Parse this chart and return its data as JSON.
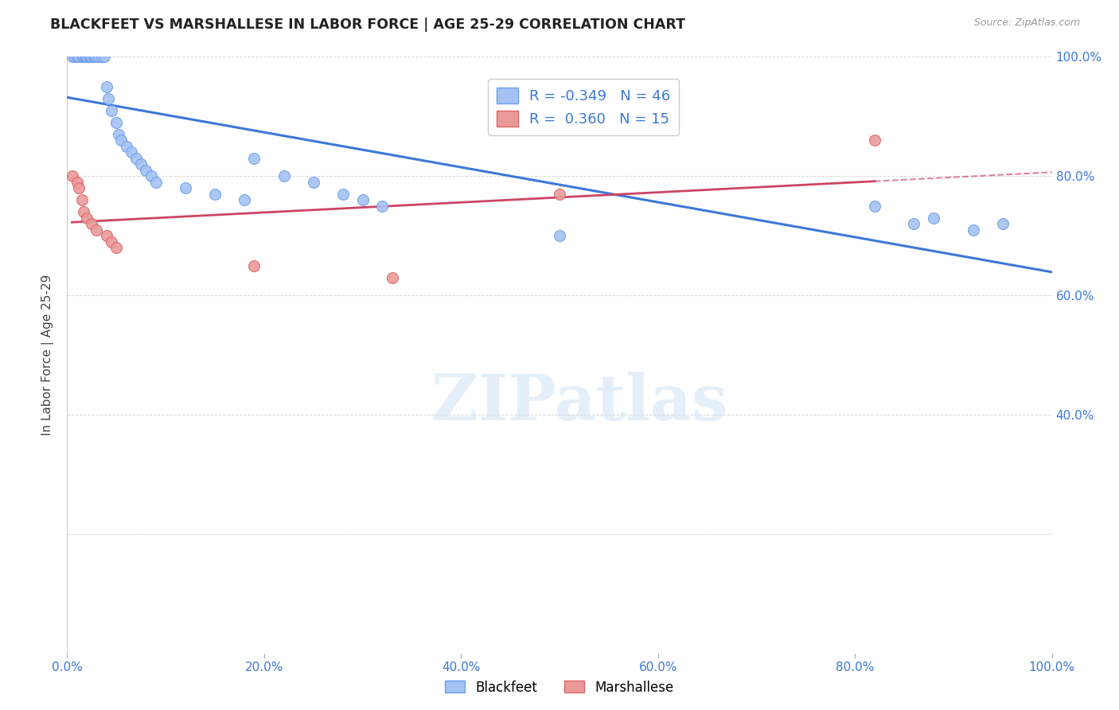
{
  "title": "BLACKFEET VS MARSHALLESE IN LABOR FORCE | AGE 25-29 CORRELATION CHART",
  "source": "Source: ZipAtlas.com",
  "ylabel": "In Labor Force | Age 25-29",
  "xlim": [
    0.0,
    1.0
  ],
  "ylim": [
    0.0,
    1.0
  ],
  "xticks": [
    0.0,
    0.2,
    0.4,
    0.6,
    0.8,
    1.0
  ],
  "ytick_right": [
    0.4,
    0.6,
    0.8,
    1.0
  ],
  "ytick_right_labels": [
    "40.0%",
    "60.0%",
    "80.0%",
    "100.0%"
  ],
  "xtick_labels": [
    "0.0%",
    "20.0%",
    "40.0%",
    "60.0%",
    "80.0%",
    "100.0%"
  ],
  "blackfeet_R": -0.349,
  "blackfeet_N": 46,
  "marshallese_R": 0.36,
  "marshallese_N": 15,
  "blue_scatter_color": "#a4c2f4",
  "blue_edge_color": "#6d9eeb",
  "pink_scatter_color": "#ea9999",
  "pink_edge_color": "#e06666",
  "blue_line_color": "#3c78d8",
  "pink_line_color": "#cc4466",
  "blackfeet_x": [
    0.005,
    0.008,
    0.01,
    0.012,
    0.015,
    0.017,
    0.018,
    0.019,
    0.02,
    0.022,
    0.023,
    0.025,
    0.027,
    0.028,
    0.03,
    0.032,
    0.035,
    0.038,
    0.04,
    0.042,
    0.045,
    0.05,
    0.052,
    0.055,
    0.06,
    0.065,
    0.07,
    0.075,
    0.08,
    0.085,
    0.09,
    0.12,
    0.15,
    0.18,
    0.19,
    0.22,
    0.25,
    0.28,
    0.3,
    0.32,
    0.5,
    0.82,
    0.86,
    0.88,
    0.92,
    0.95
  ],
  "blackfeet_y": [
    1.0,
    1.0,
    1.0,
    1.0,
    1.0,
    1.0,
    1.0,
    1.0,
    1.0,
    1.0,
    1.0,
    1.0,
    1.0,
    1.0,
    1.0,
    1.0,
    1.0,
    1.0,
    0.95,
    0.93,
    0.91,
    0.89,
    0.87,
    0.86,
    0.85,
    0.84,
    0.83,
    0.82,
    0.81,
    0.8,
    0.79,
    0.78,
    0.77,
    0.76,
    0.83,
    0.8,
    0.79,
    0.77,
    0.76,
    0.75,
    0.7,
    0.75,
    0.72,
    0.73,
    0.71,
    0.72
  ],
  "marshallese_x": [
    0.005,
    0.01,
    0.012,
    0.015,
    0.017,
    0.02,
    0.025,
    0.03,
    0.04,
    0.045,
    0.05,
    0.19,
    0.33,
    0.5,
    0.82
  ],
  "marshallese_y": [
    0.8,
    0.79,
    0.78,
    0.76,
    0.74,
    0.73,
    0.72,
    0.71,
    0.7,
    0.69,
    0.68,
    0.65,
    0.63,
    0.77,
    0.86
  ],
  "watermark_text": "ZIPatlas",
  "background_color": "#ffffff",
  "grid_color": "#cccccc",
  "grid_style": "--"
}
